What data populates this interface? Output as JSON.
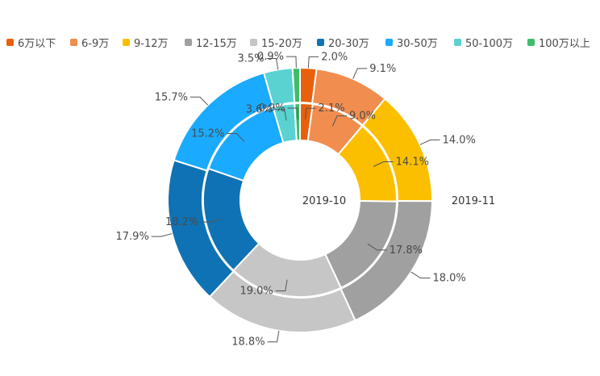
{
  "chart_data": {
    "type": "pie",
    "subtype": "nested-donut",
    "categories": [
      "6万以下",
      "6-9万",
      "9-12万",
      "12-15万",
      "15-20万",
      "20-30万",
      "30-50万",
      "50-100万",
      "100万以上"
    ],
    "colors": [
      "#e8600e",
      "#f18d4e",
      "#fcbf00",
      "#a0a0a0",
      "#c6c6c6",
      "#0f72b4",
      "#1aaaff",
      "#5ad2d2",
      "#3fbc6a"
    ],
    "series": [
      {
        "name": "2019-10",
        "ring": "inner",
        "values": [
          2.1,
          9.0,
          14.1,
          17.8,
          19.0,
          18.2,
          15.2,
          3.6,
          0.9
        ],
        "labels": [
          "2.1%",
          "9.0%",
          "14.1%",
          "17.8%",
          "19.0%",
          "18.2%",
          "15.2%",
          "3.6%",
          "0.9%"
        ]
      },
      {
        "name": "2019-11",
        "ring": "outer",
        "values": [
          2.0,
          9.1,
          14.0,
          18.0,
          18.8,
          17.9,
          15.7,
          3.5,
          0.9
        ],
        "labels": [
          "2.0%",
          "9.1%",
          "14.0%",
          "18.0%",
          "18.8%",
          "17.9%",
          "15.7%",
          "3.5%",
          "0.9%"
        ]
      }
    ],
    "legend_position": "top"
  }
}
